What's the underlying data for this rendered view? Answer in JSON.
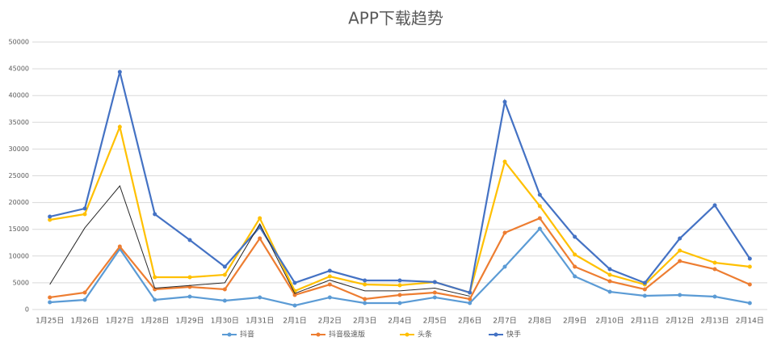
{
  "chart_data": {
    "type": "line",
    "title": "APP下载趋势",
    "categories": [
      "1月25日",
      "1月26日",
      "1月27日",
      "1月28日",
      "1月29日",
      "1月30日",
      "1月31日",
      "2月1日",
      "2月2日",
      "2月3日",
      "2月4日",
      "2月5日",
      "2月6日",
      "2月7日",
      "2月8日",
      "2月9日",
      "2月10日",
      "2月11日",
      "2月12日",
      "2月13日",
      "2月14日"
    ],
    "series": [
      {
        "name": "抖音",
        "color": "#5b9bd5",
        "values": [
          1360,
          1810,
          11330,
          1810,
          2420,
          1660,
          2270,
          760,
          2270,
          1210,
          1210,
          2270,
          1210,
          8010,
          15110,
          6190,
          3320,
          2570,
          2720,
          2420,
          1210
        ]
      },
      {
        "name": "抖音极速版",
        "color": "#ed7d31",
        "values": [
          2270,
          3170,
          11780,
          3780,
          4230,
          3780,
          13290,
          2720,
          4680,
          1960,
          2720,
          3170,
          1960,
          14350,
          17070,
          8010,
          5290,
          3780,
          9060,
          7550,
          4680
        ]
      },
      {
        "name": "头条",
        "color": "#ffc000",
        "values": [
          16770,
          17830,
          34140,
          6040,
          6040,
          6500,
          17070,
          3470,
          6190,
          4680,
          4530,
          5140,
          3170,
          27640,
          19340,
          10270,
          6500,
          4680,
          11030,
          8760,
          8010
        ]
      },
      {
        "name": "快手",
        "color": "#4472c4",
        "values": [
          17370,
          18880,
          44410,
          17830,
          12990,
          8010,
          15410,
          4990,
          7250,
          5440,
          5440,
          5140,
          3170,
          38820,
          21450,
          13600,
          7550,
          4990,
          13290,
          19490,
          9520
        ]
      },
      {
        "color": "#262626",
        "values": [
          4680,
          15260,
          23110,
          4000,
          4500,
          5000,
          16000,
          3000,
          5500,
          3500,
          3500,
          4000,
          2500,
          null,
          null,
          null,
          null,
          null,
          null,
          null,
          null
        ]
      }
    ],
    "ylim": [
      0,
      50000
    ],
    "yticks": [
      0,
      5000,
      10000,
      15000,
      20000,
      25000,
      30000,
      35000,
      40000,
      45000,
      50000
    ],
    "grid": true,
    "legend": "bottom"
  }
}
